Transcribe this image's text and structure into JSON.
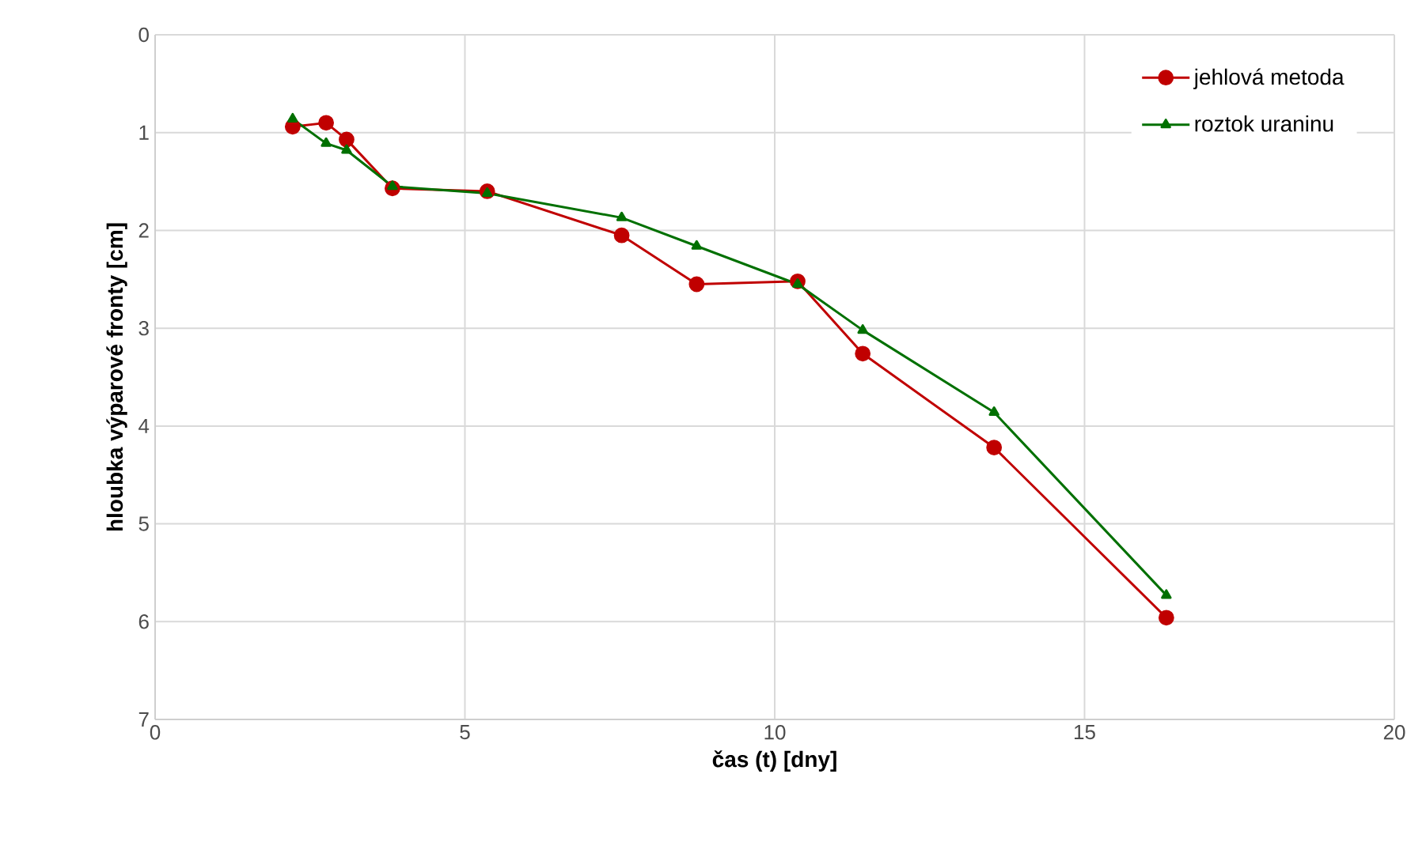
{
  "chart_data": {
    "type": "line",
    "xlabel": "čas (t) [dny]",
    "ylabel": "hloubka výparové fronty [cm]",
    "xlim": [
      0,
      20
    ],
    "xticks": [
      0,
      5,
      10,
      15,
      20
    ],
    "ylim": [
      7,
      0
    ],
    "yticks": [
      0,
      1,
      2,
      3,
      4,
      5,
      6,
      7
    ],
    "grid": true,
    "legend": "top right",
    "line_style": "solid",
    "series": [
      {
        "name": "jehlová metoda",
        "color": "#c00000",
        "marker": "circle",
        "x": [
          2.22,
          2.76,
          3.09,
          3.83,
          5.36,
          7.53,
          8.74,
          10.37,
          11.42,
          13.54,
          16.32
        ],
        "values": [
          0.94,
          0.9,
          1.07,
          1.57,
          1.6,
          2.05,
          2.55,
          2.52,
          3.26,
          4.22,
          5.96
        ]
      },
      {
        "name": "roztok uraninu",
        "color": "#007000",
        "marker": "triangle",
        "x": [
          2.22,
          2.76,
          3.09,
          3.83,
          5.36,
          7.53,
          8.74,
          10.37,
          11.42,
          13.54,
          16.32
        ],
        "values": [
          0.86,
          1.11,
          1.18,
          1.55,
          1.62,
          1.87,
          2.16,
          2.55,
          3.02,
          3.86,
          5.73
        ]
      }
    ]
  }
}
